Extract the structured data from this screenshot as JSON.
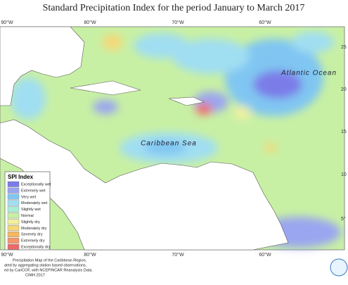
{
  "title": "Standard Precipitation Index for the period January to March 2017",
  "longitude_labels": [
    "90°W",
    "80°W",
    "70°W",
    "60°W"
  ],
  "latitude_labels": [
    "25",
    "20",
    "15",
    "10",
    "5°"
  ],
  "ocean_labels": [
    "Atlantic Ocean",
    "Caribbean Sea"
  ],
  "legend": {
    "title": "SPI Index",
    "items": [
      {
        "label": "Exceptionally wet",
        "color": "#7b7be8"
      },
      {
        "label": "Extremely wet",
        "color": "#9aa6f0"
      },
      {
        "label": "Very wet",
        "color": "#80c6f2"
      },
      {
        "label": "Moderately wet",
        "color": "#a0def2"
      },
      {
        "label": "Slightly wet",
        "color": "#a8eed6"
      },
      {
        "label": "Normal",
        "color": "#c8f0a4"
      },
      {
        "label": "Slightly dry",
        "color": "#f0f0a0"
      },
      {
        "label": "Moderately dry",
        "color": "#f5d878"
      },
      {
        "label": "Severely dry",
        "color": "#f5b862"
      },
      {
        "label": "Extremely dry",
        "color": "#f5966a"
      },
      {
        "label": "Exceptionally dry",
        "color": "#ef6868"
      }
    ]
  },
  "credits": [
    "Precipitation Map of the Caribbean Region,",
    "ated by aggregating station based observations,",
    "ed by CariCOF, with NCEP/NCAR Reanalysis Data.",
    "CIMH 2017"
  ]
}
